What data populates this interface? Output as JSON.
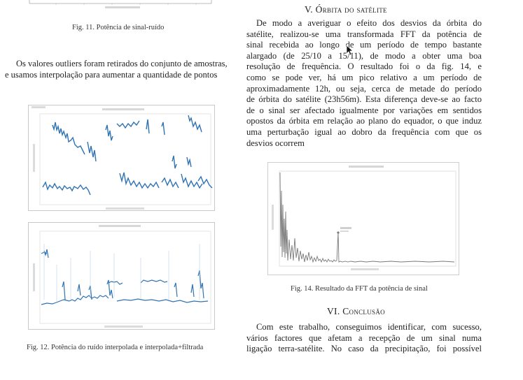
{
  "fig11": {
    "caption": "Fig. 11.  Potência de sinal-ruído"
  },
  "left_paragraph": {
    "line1": "Os valores outliers foram retirados do conjunto de amostras,",
    "line2": "e usamos interpolação para aumentar a quantidade de pontos"
  },
  "fig12": {
    "caption": "Fig. 12.  Potência do ruído interpolada e interpolada+filtrada"
  },
  "section5": {
    "number": "V.",
    "title": "Órbita do satélite",
    "lines": [
      "De modo a averiguar o efeito dos desvios da órbita do",
      "satélite, realizou-se uma transformada FFT da potência de",
      "sinal recebida ao longo de um período de tempo bastante",
      "alargado (de 25/10 a 15/11), de modo a obter uma boa",
      "resolução de frequência. O resultado foi o da fig. 14, e",
      "como se pode ver, há um pico relativo a um período de",
      "aproximadamente 12h, ou seja, cerca de metade do período",
      "de órbita do satélite (23h56m). Esta diferença deve-se ao facto",
      "de o sinal ser afectado igualmente por variações em sentidos",
      "opostos da órbita em relação ao plano do equador, o que induz",
      "uma perturbação igual ao dobro da frequência com que os",
      "desvios ocorrem"
    ]
  },
  "fig14": {
    "caption": "Fig. 14.  Resultado da FFT da potência de sinal"
  },
  "section6": {
    "number": "VI.",
    "title": "Conclusão",
    "lines": [
      "Com este trabalho, conseguimos identificar, com sucesso,",
      "vários factores que afetam a recepção de um sinal numa",
      "ligação terra-satélite. No caso da precipitação, foi possível"
    ]
  },
  "colors": {
    "plot_line": "#2f73b3",
    "axis": "#999999",
    "text": "#222222"
  }
}
